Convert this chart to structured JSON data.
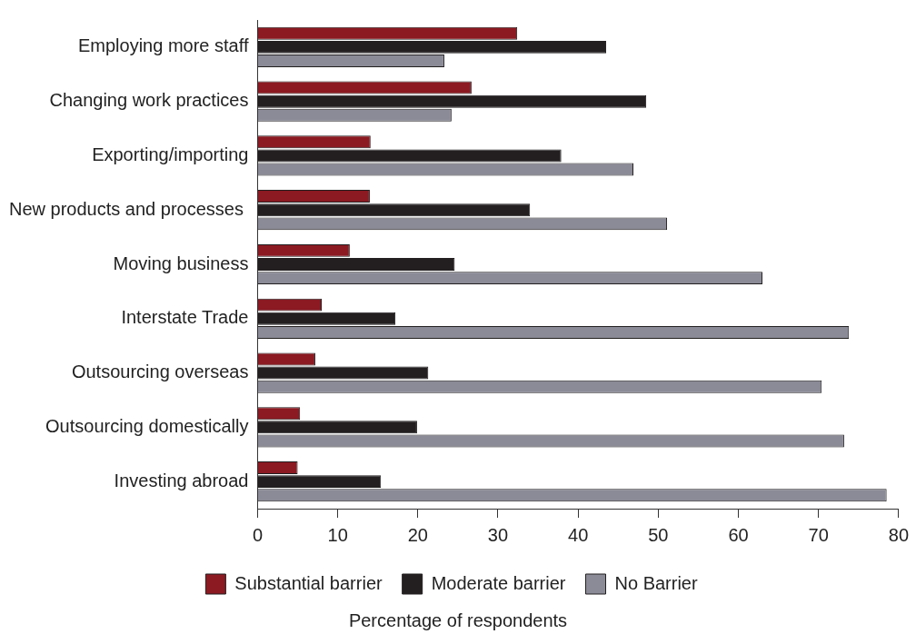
{
  "chart_data": {
    "type": "bar",
    "orientation": "horizontal",
    "categories": [
      "Employing more staff",
      "Changing work practices",
      "Exporting/importing",
      "New products and processes ",
      "Moving business",
      "Interstate Trade",
      "Outsourcing overseas",
      "Outsourcing domestically",
      "Investing abroad"
    ],
    "series": [
      {
        "name": "Substantial barrier",
        "color": "#8b1a22",
        "values": [
          32.4,
          26.7,
          14.1,
          14.0,
          11.5,
          8.0,
          7.2,
          5.3,
          5.0
        ]
      },
      {
        "name": "Moderate barrier",
        "color": "#231f20",
        "values": [
          43.5,
          48.5,
          37.9,
          34.0,
          24.6,
          17.2,
          21.3,
          19.9,
          15.4
        ]
      },
      {
        "name": "No Barrier",
        "color": "#8b8b97",
        "values": [
          23.3,
          24.2,
          46.9,
          51.1,
          63.0,
          73.8,
          70.4,
          73.2,
          78.5
        ]
      }
    ],
    "xlabel": "Percentage of respondents",
    "xlim": [
      0,
      80
    ],
    "xticks": [
      0,
      10,
      20,
      30,
      40,
      50,
      60,
      70,
      80
    ],
    "grid": false,
    "legend": "bottom"
  }
}
